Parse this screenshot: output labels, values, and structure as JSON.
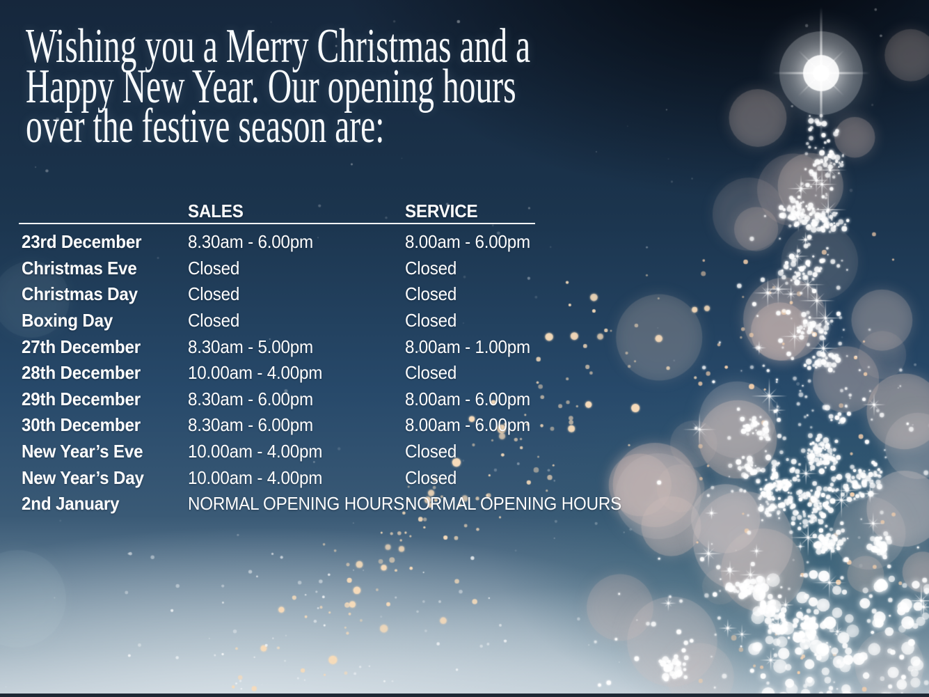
{
  "heading": {
    "lines": [
      "Wishing you a Merry Christmas and a",
      "Happy New Year. Our opening hours",
      "over the festive season are:"
    ]
  },
  "hours_table": {
    "columns": [
      "SALES",
      "SERVICE"
    ],
    "rows": [
      {
        "day": "23rd December",
        "sales": "8.30am - 6.00pm",
        "service": "8.00am - 6.00pm"
      },
      {
        "day": "Christmas Eve",
        "sales": "Closed",
        "service": "Closed"
      },
      {
        "day": "Christmas Day",
        "sales": "Closed",
        "service": "Closed"
      },
      {
        "day": "Boxing Day",
        "sales": "Closed",
        "service": "Closed"
      },
      {
        "day": "27th December",
        "sales": "8.30am - 5.00pm",
        "service": "8.00am - 1.00pm"
      },
      {
        "day": "28th December",
        "sales": "10.00am - 4.00pm",
        "service": "Closed"
      },
      {
        "day": "29th December",
        "sales": "8.30am - 6.00pm",
        "service": "8.00am - 6.00pm"
      },
      {
        "day": "30th December",
        "sales": "8.30am - 6.00pm",
        "service": "8.00am - 6.00pm"
      },
      {
        "day": "New Year’s Eve",
        "sales": "10.00am - 4.00pm",
        "service": "Closed"
      },
      {
        "day": "New Year’s Day",
        "sales": "10.00am - 4.00pm",
        "service": "Closed"
      },
      {
        "day": "2nd January",
        "sales": "NORMAL OPENING HOURS",
        "service": "NORMAL OPENING HOURS"
      }
    ]
  },
  "icons": {
    "tree_topper_star_icon": "light-flare-star",
    "christmas_tree_graphic": "sparkle-bokeh-tree"
  },
  "palette": {
    "background_top": "#16273c",
    "background_mid": "#27496a",
    "background_light": "#b9c6d0",
    "text": "#fdfdfd",
    "sparkle": "#ffffff",
    "warm_bokeh": "#f6dbba"
  }
}
